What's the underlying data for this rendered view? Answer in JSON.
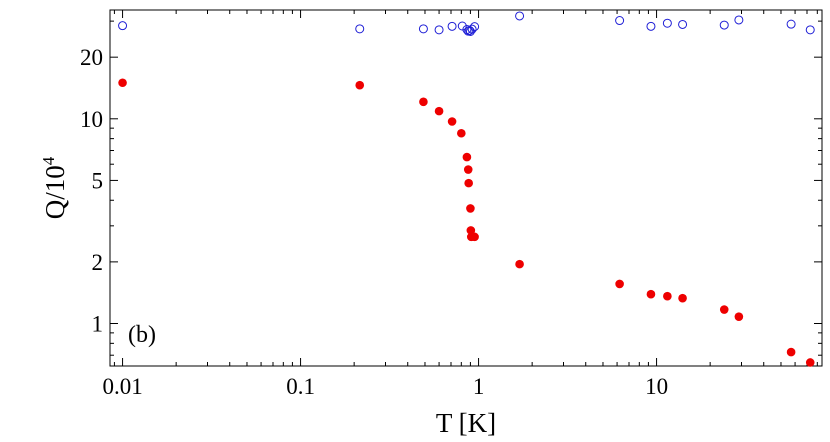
{
  "chart_data": {
    "type": "scatter",
    "xlabel": "T [K]",
    "ylabel_base": "Q/10",
    "ylabel_exp": "4",
    "panel_label": "(b)",
    "x_scale": "log",
    "y_scale": "log",
    "xlim": [
      0.0085,
      85
    ],
    "ylim": [
      0.62,
      34
    ],
    "x_ticks": [
      {
        "value": 0.01,
        "label": "0.01"
      },
      {
        "value": 0.1,
        "label": "0.1"
      },
      {
        "value": 1,
        "label": "1"
      },
      {
        "value": 10,
        "label": "10"
      }
    ],
    "y_ticks": [
      {
        "value": 1,
        "label": "1"
      },
      {
        "value": 2,
        "label": "2"
      },
      {
        "value": 5,
        "label": "5"
      },
      {
        "value": 10,
        "label": "10"
      },
      {
        "value": 20,
        "label": "20"
      }
    ],
    "grid": false,
    "series": [
      {
        "marker": "open-circle",
        "color": "#1f1fd6",
        "points": [
          [
            0.01,
            28.5
          ],
          [
            0.215,
            27.5
          ],
          [
            0.49,
            27.5
          ],
          [
            0.6,
            27.2
          ],
          [
            0.71,
            28.3
          ],
          [
            0.81,
            28.4
          ],
          [
            0.86,
            27.3
          ],
          [
            0.875,
            26.8
          ],
          [
            0.89,
            27.0
          ],
          [
            0.9,
            26.7
          ],
          [
            0.92,
            27.4
          ],
          [
            0.95,
            28.2
          ],
          [
            1.7,
            31.8
          ],
          [
            6.2,
            30.2
          ],
          [
            9.3,
            28.3
          ],
          [
            11.5,
            29.3
          ],
          [
            14.0,
            28.9
          ],
          [
            24.0,
            28.7
          ],
          [
            29.0,
            30.4
          ],
          [
            57.0,
            29.0
          ],
          [
            73.0,
            27.2
          ]
        ]
      },
      {
        "marker": "filled-circle",
        "color": "#ee0000",
        "points": [
          [
            0.01,
            15.0
          ],
          [
            0.215,
            14.6
          ],
          [
            0.49,
            12.1
          ],
          [
            0.6,
            10.9
          ],
          [
            0.71,
            9.7
          ],
          [
            0.8,
            8.5
          ],
          [
            0.86,
            6.5
          ],
          [
            0.875,
            5.65
          ],
          [
            0.88,
            4.85
          ],
          [
            0.9,
            3.65
          ],
          [
            0.905,
            2.85
          ],
          [
            0.91,
            2.65
          ],
          [
            0.95,
            2.65
          ],
          [
            1.7,
            1.95
          ],
          [
            6.2,
            1.56
          ],
          [
            9.3,
            1.39
          ],
          [
            11.5,
            1.36
          ],
          [
            14.0,
            1.33
          ],
          [
            24.0,
            1.17
          ],
          [
            29.0,
            1.08
          ],
          [
            57.0,
            0.725
          ],
          [
            73.0,
            0.645
          ]
        ]
      }
    ]
  }
}
